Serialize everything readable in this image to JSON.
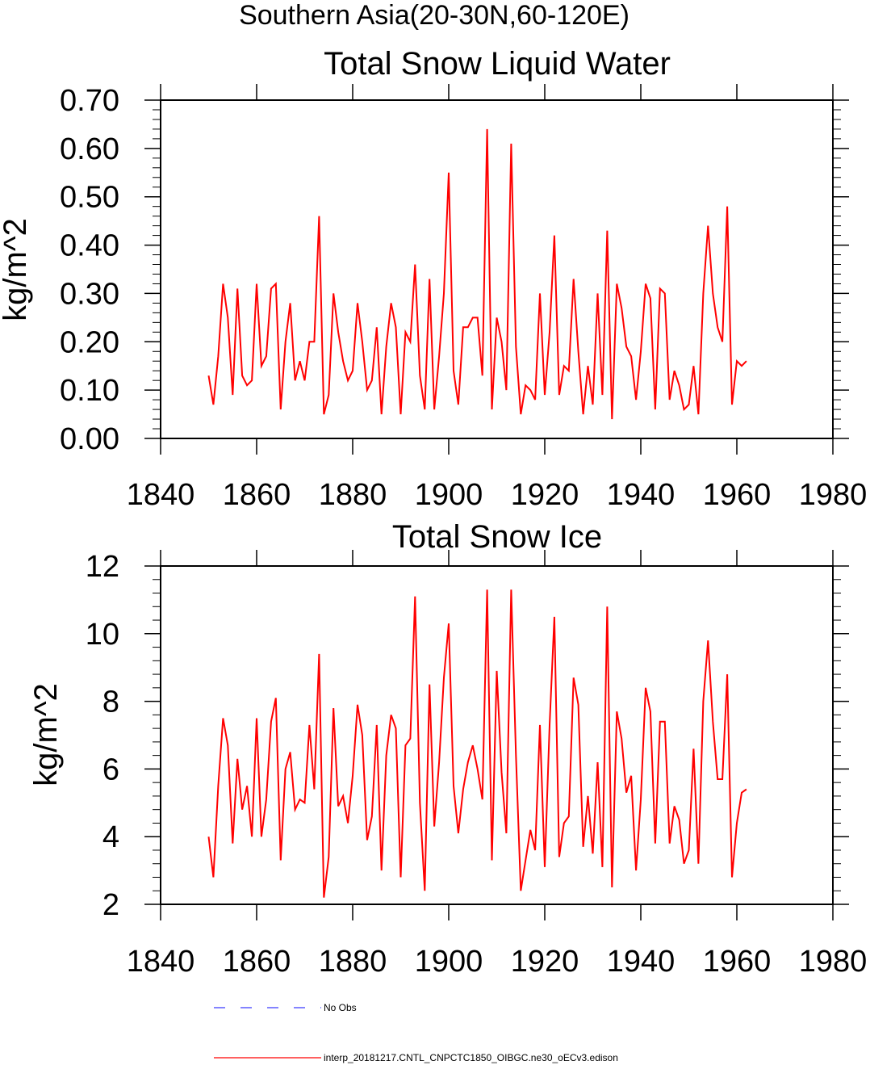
{
  "page_title": "Southern Asia(20-30N,60-120E)",
  "chart_data": [
    {
      "type": "line",
      "title": "Total Snow Liquid Water",
      "ylabel": "kg/m^2",
      "xlabel": "",
      "xlim": [
        1840,
        1980
      ],
      "ylim": [
        0.0,
        0.7
      ],
      "x_ticks": [
        1840,
        1860,
        1880,
        1900,
        1920,
        1940,
        1960,
        1980
      ],
      "x_tick_labels": [
        "1840",
        "1860",
        "1880",
        "1900",
        "1920",
        "1940",
        "1960",
        "1980"
      ],
      "y_ticks": [
        0.0,
        0.1,
        0.2,
        0.3,
        0.4,
        0.5,
        0.6,
        0.7
      ],
      "y_tick_labels": [
        "0.00",
        "0.10",
        "0.20",
        "0.30",
        "0.40",
        "0.50",
        "0.60",
        "0.70"
      ],
      "series": [
        {
          "name": "interp_20181217.CNTL_CNPCTC1850_OIBGC.ne30_oECv3.edison",
          "color": "#ff0000",
          "x_start": 1850,
          "x_step": 1,
          "values": [
            0.13,
            0.07,
            0.17,
            0.32,
            0.25,
            0.09,
            0.31,
            0.13,
            0.11,
            0.12,
            0.32,
            0.15,
            0.17,
            0.31,
            0.32,
            0.06,
            0.2,
            0.28,
            0.12,
            0.16,
            0.12,
            0.2,
            0.2,
            0.46,
            0.05,
            0.09,
            0.3,
            0.22,
            0.16,
            0.12,
            0.14,
            0.28,
            0.2,
            0.1,
            0.12,
            0.23,
            0.05,
            0.19,
            0.28,
            0.23,
            0.05,
            0.22,
            0.2,
            0.36,
            0.13,
            0.06,
            0.33,
            0.06,
            0.17,
            0.3,
            0.55,
            0.14,
            0.07,
            0.23,
            0.23,
            0.25,
            0.25,
            0.13,
            0.64,
            0.06,
            0.25,
            0.2,
            0.1,
            0.61,
            0.19,
            0.05,
            0.11,
            0.1,
            0.08,
            0.3,
            0.09,
            0.22,
            0.42,
            0.09,
            0.15,
            0.14,
            0.33,
            0.18,
            0.05,
            0.15,
            0.07,
            0.3,
            0.09,
            0.43,
            0.04,
            0.32,
            0.27,
            0.19,
            0.17,
            0.08,
            0.18,
            0.32,
            0.29,
            0.06,
            0.31,
            0.3,
            0.08,
            0.14,
            0.11,
            0.06,
            0.07,
            0.15,
            0.05,
            0.3,
            0.44,
            0.3,
            0.23,
            0.2,
            0.48,
            0.07,
            0.16,
            0.15,
            0.16
          ]
        }
      ]
    },
    {
      "type": "line",
      "title": "Total Snow Ice",
      "ylabel": "kg/m^2",
      "xlabel": "",
      "xlim": [
        1840,
        1980
      ],
      "ylim": [
        2,
        12
      ],
      "x_ticks": [
        1840,
        1860,
        1880,
        1900,
        1920,
        1940,
        1960,
        1980
      ],
      "x_tick_labels": [
        "1840",
        "1860",
        "1880",
        "1900",
        "1920",
        "1940",
        "1960",
        "1980"
      ],
      "y_ticks": [
        2,
        4,
        6,
        8,
        10,
        12
      ],
      "y_tick_labels": [
        "2",
        "4",
        "6",
        "8",
        "10",
        "12"
      ],
      "series": [
        {
          "name": "interp_20181217.CNTL_CNPCTC1850_OIBGC.ne30_oECv3.edison",
          "color": "#ff0000",
          "x_start": 1850,
          "x_step": 1,
          "values": [
            4.0,
            2.8,
            5.5,
            7.5,
            6.7,
            3.8,
            6.3,
            4.8,
            5.5,
            4.0,
            7.5,
            4.0,
            5.1,
            7.4,
            8.1,
            3.3,
            6.0,
            6.5,
            4.8,
            5.1,
            5.0,
            7.3,
            5.4,
            9.4,
            2.2,
            3.4,
            7.8,
            4.9,
            5.2,
            4.4,
            5.8,
            7.9,
            7.0,
            3.9,
            4.6,
            7.3,
            3.0,
            6.4,
            7.6,
            7.2,
            2.8,
            6.7,
            6.9,
            11.1,
            5.0,
            2.4,
            8.5,
            4.3,
            6.2,
            8.7,
            10.3,
            5.5,
            4.1,
            5.4,
            6.2,
            6.7,
            6.0,
            5.1,
            11.3,
            3.3,
            8.9,
            5.9,
            4.1,
            11.3,
            6.4,
            2.4,
            3.3,
            4.2,
            3.6,
            7.3,
            3.1,
            7.3,
            10.5,
            3.4,
            4.4,
            4.6,
            8.7,
            7.9,
            3.7,
            5.2,
            3.5,
            6.2,
            3.1,
            10.8,
            2.5,
            7.7,
            6.9,
            5.3,
            5.8,
            3.0,
            5.1,
            8.4,
            7.7,
            3.8,
            7.4,
            7.4,
            3.8,
            4.9,
            4.5,
            3.2,
            3.6,
            6.6,
            3.2,
            8.0,
            9.8,
            7.4,
            5.7,
            5.7,
            8.8,
            2.8,
            4.4,
            5.3,
            5.4
          ]
        }
      ]
    }
  ],
  "legend": [
    {
      "label": "No Obs",
      "color": "#3b3bff",
      "style": "dashed"
    },
    {
      "label": "interp_20181217.CNTL_CNPCTC1850_OIBGC.ne30_oECv3.edison",
      "color": "#ff0000",
      "style": "solid"
    }
  ]
}
